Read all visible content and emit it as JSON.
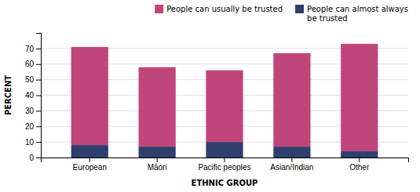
{
  "chart_data": {
    "type": "bar",
    "stacked": true,
    "categories": [
      "European",
      "Māori",
      "Pacific peoples",
      "Asian/Indian",
      "Other"
    ],
    "series": [
      {
        "name": "People can almost always\nbe trusted",
        "color": "#2e3f6e",
        "values": [
          8,
          7,
          10,
          7,
          4
        ]
      },
      {
        "name": "People can usually be trusted",
        "color": "#c0457a",
        "values": [
          63,
          51,
          46,
          60,
          69
        ]
      }
    ],
    "xlabel": "ETHNIC GROUP",
    "ylabel": "PERCENT",
    "ylim": [
      0,
      80
    ],
    "yticks": [
      0,
      10,
      20,
      30,
      40,
      50,
      60,
      70
    ],
    "grid": true,
    "legend": "top-right"
  }
}
